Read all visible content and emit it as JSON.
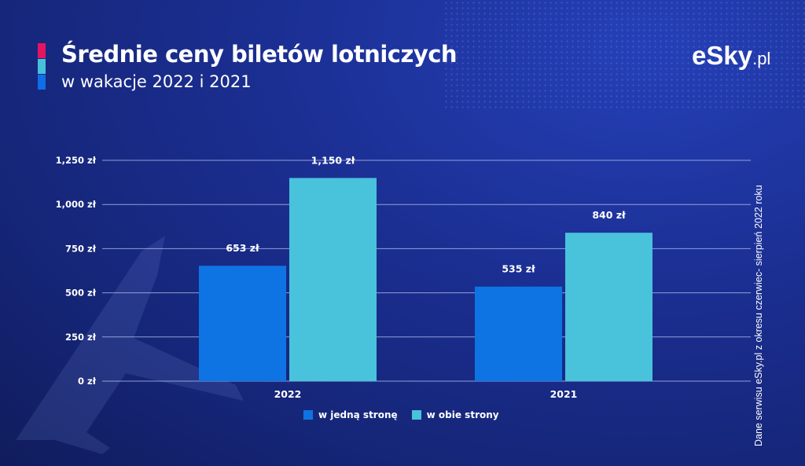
{
  "header": {
    "title": "Średnie ceny biletów lotniczych",
    "subtitle": "w wakacje 2022 i 2021"
  },
  "logo": {
    "main": "eSky",
    "suffix": ".pl"
  },
  "source_note": "Dane serwisu eSky.pl z okresu czerwiec- sierpień 2022 roku",
  "colors": {
    "accent_pink": "#e5145f",
    "accent_teal": "#47c0d9",
    "accent_blue": "#0e6fe6",
    "series_one_way": "#0f74e3",
    "series_round_trip": "#49c2db"
  },
  "chart_data": {
    "type": "bar",
    "categories": [
      "2022",
      "2021"
    ],
    "series": [
      {
        "name": "w jedną stronę",
        "values": [
          653,
          535
        ],
        "labels": [
          "653 zł",
          "535 zł"
        ]
      },
      {
        "name": "w obie strony",
        "values": [
          1150,
          840
        ],
        "labels": [
          "1,150 zł",
          "840 zł"
        ]
      }
    ],
    "yticks": [
      0,
      250,
      500,
      750,
      1000,
      1250
    ],
    "ytick_labels": [
      "0 zł",
      "250 zł",
      "500 zł",
      "750 zł",
      "1,000 zł",
      "1,250 zł"
    ],
    "ylim": [
      0,
      1250
    ],
    "grid": true,
    "legend_position": "bottom"
  }
}
